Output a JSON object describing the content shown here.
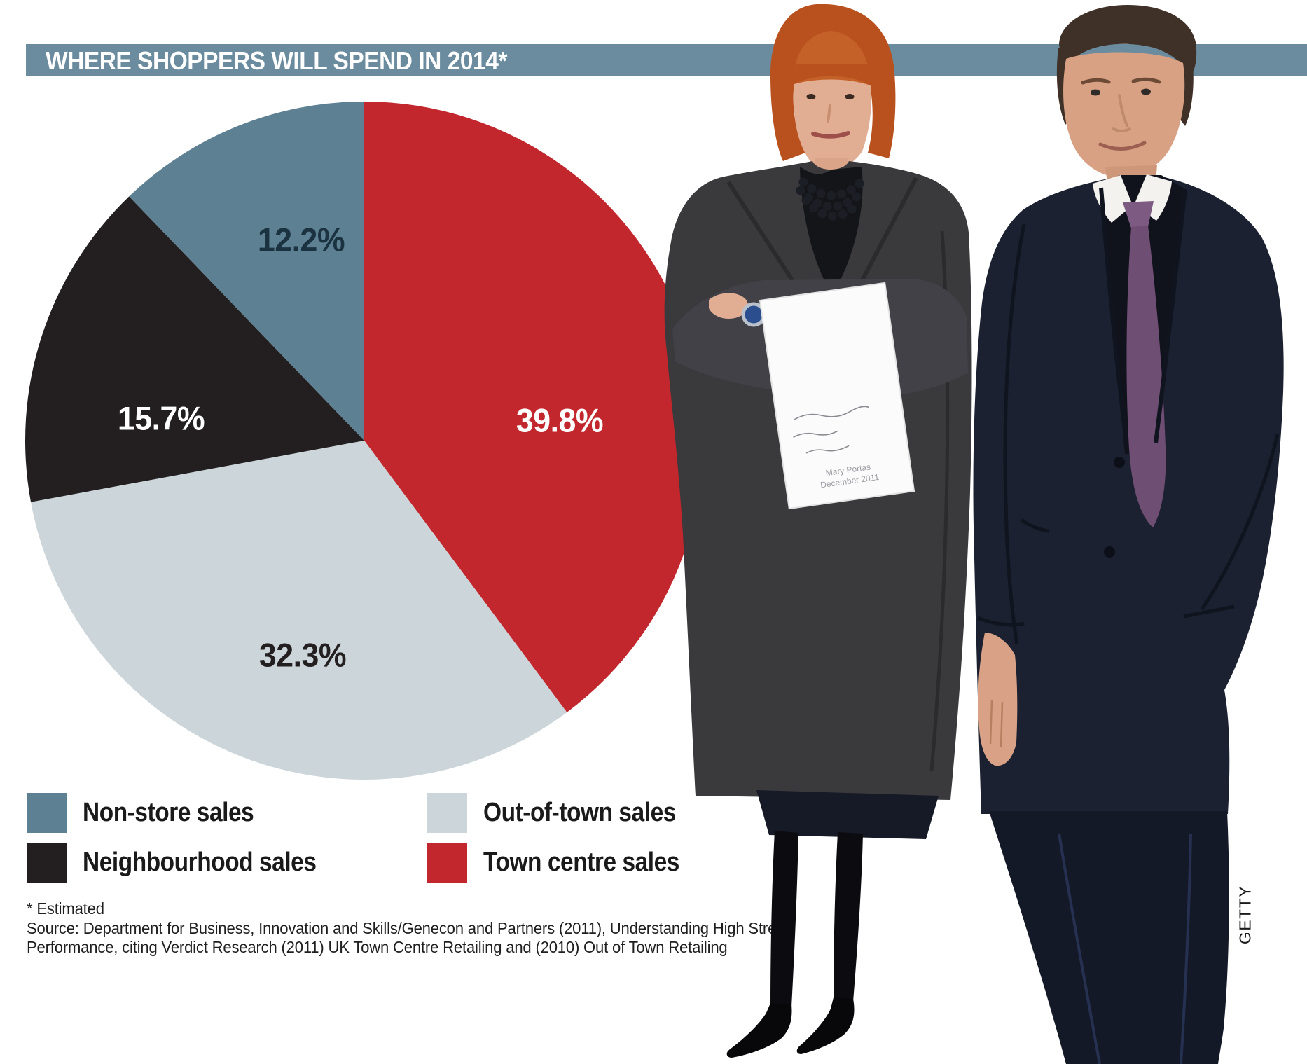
{
  "header": {
    "title": "WHERE SHOPPERS WILL SPEND IN 2014*",
    "bar_color": "#6b8c9e",
    "text_color": "#ffffff"
  },
  "chart_data": {
    "type": "pie",
    "title": "WHERE SHOPPERS WILL SPEND IN 2014*",
    "direction": "clockwise",
    "start_angle": "12 o'clock",
    "legend_position": "bottom-left two columns",
    "slices": [
      {
        "label": "Town centre sales",
        "value": 39.8,
        "display": "39.8%",
        "color": "#c1272d",
        "text_color": "#ffffff"
      },
      {
        "label": "Out-of-town sales",
        "value": 32.3,
        "display": "32.3%",
        "color": "#ccd5d9",
        "text_color": "#231f20"
      },
      {
        "label": "Neighbourhood sales",
        "value": 15.7,
        "display": "15.7%",
        "color": "#231f20",
        "text_color": "#ffffff"
      },
      {
        "label": "Non-store sales",
        "value": 12.2,
        "display": "12.2%",
        "color": "#5d8093",
        "text_color": "#1b3240"
      }
    ]
  },
  "legend": {
    "items": [
      {
        "label": "Non-store sales",
        "color": "#5d8093"
      },
      {
        "label": "Out-of-town sales",
        "color": "#ccd5d9"
      },
      {
        "label": "Neighbourhood sales",
        "color": "#231f20"
      },
      {
        "label": "Town centre sales",
        "color": "#c1272d"
      }
    ]
  },
  "footnote": {
    "line1": "* Estimated",
    "line2": "Source: Department for Business, Innovation and Skills/Genecon and Partners (2011), Understanding High Street",
    "line3": "Performance, citing Verdict Research (2011) UK Town Centre Retailing and (2010) Out of Town Retailing"
  },
  "photo": {
    "credit": "GETTY",
    "paper_lines": [
      "Mary Portas",
      "December 2011"
    ]
  }
}
